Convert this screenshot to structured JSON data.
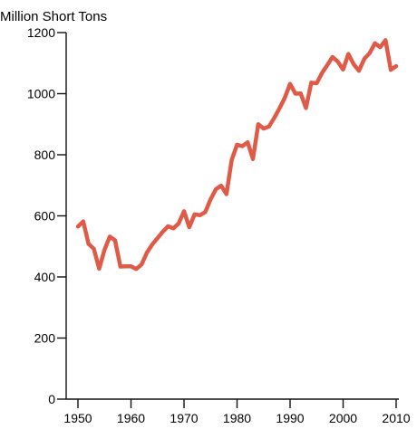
{
  "chart_data": {
    "type": "line",
    "title": "",
    "ylabel": "Million Short Tons",
    "xlabel": "",
    "xlim": [
      1949,
      2011
    ],
    "ylim": [
      0,
      1200
    ],
    "x_ticks": [
      1950,
      1960,
      1970,
      1980,
      1990,
      2000,
      2010
    ],
    "y_ticks": [
      0,
      200,
      400,
      600,
      800,
      1000,
      1200
    ],
    "grid": false,
    "line_color": "#e05a48",
    "series": [
      {
        "x": [
          1950,
          1951,
          1952,
          1953,
          1954,
          1955,
          1956,
          1957,
          1958,
          1959,
          1960,
          1961,
          1962,
          1963,
          1964,
          1965,
          1966,
          1967,
          1968,
          1969,
          1970,
          1971,
          1972,
          1973,
          1974,
          1975,
          1976,
          1977,
          1978,
          1979,
          1980,
          1981,
          1982,
          1983,
          1984,
          1985,
          1986,
          1987,
          1988,
          1989,
          1990,
          1991,
          1992,
          1993,
          1994,
          1995,
          1996,
          1997,
          1998,
          1999,
          2000,
          2001,
          2002,
          2003,
          2004,
          2005,
          2006,
          2007,
          2008,
          2009,
          2010
        ],
        "values": [
          565,
          582,
          508,
          492,
          427,
          489,
          532,
          520,
          434,
          435,
          435,
          426,
          441,
          480,
          506,
          527,
          548,
          566,
          559,
          575,
          615,
          563,
          605,
          602,
          612,
          654,
          687,
          699,
          671,
          783,
          833,
          828,
          841,
          786,
          900,
          886,
          892,
          920,
          952,
          986,
          1032,
          1000,
          1001,
          953,
          1036,
          1034,
          1067,
          1093,
          1120,
          1105,
          1079,
          1130,
          1096,
          1075,
          1114,
          1133,
          1165,
          1152,
          1175,
          1078,
          1090
        ]
      }
    ]
  }
}
